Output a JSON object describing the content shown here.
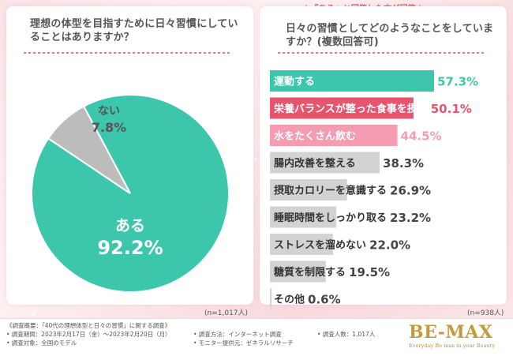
{
  "note": "＊『ある』と回答した方が回答＊",
  "left": {
    "question": "理想の体型を目指すために日々習慣にしていることはありますか？",
    "sample": "(n=1,017人)"
  },
  "right": {
    "question": "日々の習慣としてどのようなことをしていますか？(複数回答可)",
    "sample": "(n=938人)"
  },
  "chart_data": [
    {
      "type": "pie",
      "title": "理想の体型を目指すために日々習慣にしていることはありますか？",
      "slices": [
        {
          "label": "ある",
          "value": 92.2,
          "value_text": "92.2%",
          "color": "#3cc7ad"
        },
        {
          "label": "ない",
          "value": 7.8,
          "value_text": "7.8%",
          "color": "#bcbcbc"
        }
      ]
    },
    {
      "type": "bar",
      "orientation": "horizontal",
      "title": "日々の習慣としてどのようなことをしていますか？(複数回答可)",
      "categories": [
        "運動する",
        "栄養バランスが整った食事を摂る",
        "水をたくさん飲む",
        "腸内改善を整える",
        "摂取カロリーを意識する",
        "睡眠時間をしっかり取る",
        "ストレスを溜めない",
        "糖質を制限する",
        "その他"
      ],
      "values": [
        57.3,
        50.1,
        44.5,
        38.3,
        26.9,
        23.2,
        22.0,
        19.5,
        0.6
      ],
      "value_texts": [
        "57.3%",
        "50.1%",
        "44.5%",
        "38.3%",
        "26.9%",
        "23.2%",
        "22.0%",
        "19.5%",
        "0.6%"
      ],
      "colors": [
        "#3cc7ad",
        "#e8546e",
        "#f59bb2",
        "#d3d3d3",
        "#d3d3d3",
        "#d3d3d3",
        "#d3d3d3",
        "#d3d3d3",
        "#d3d3d3"
      ],
      "value_colors": [
        "#3cc7ad",
        "#e8546e",
        "#f59bb2",
        "#444444",
        "#444444",
        "#444444",
        "#444444",
        "#444444",
        "#444444"
      ],
      "xlim": [
        0,
        57.3
      ]
    }
  ],
  "footer": {
    "survey_title": "《調査概要：「40代の理想体型と日々の習慣」に関する調査》",
    "period": "• 調査期間：2023年2月17日（金）〜2023年2月20日（月）",
    "target": "• 調査対象：全国のモデル",
    "method": "• 調査方法：インターネット調査",
    "monitor": "• モニター提供元：ゼネラルリサーチ",
    "count": "• 調査人数：1,017人",
    "logo": "BE-MAX",
    "tagline": "Everyday Be max in your Beauty"
  }
}
